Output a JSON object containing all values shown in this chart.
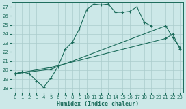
{
  "xlabel": "Humidex (Indice chaleur)",
  "xlim": [
    -0.5,
    23.5
  ],
  "ylim": [
    17.5,
    27.5
  ],
  "xticks": [
    0,
    1,
    2,
    3,
    4,
    5,
    6,
    7,
    8,
    9,
    10,
    11,
    12,
    13,
    14,
    15,
    16,
    17,
    18,
    19,
    20,
    21,
    22,
    23
  ],
  "yticks": [
    18,
    19,
    20,
    21,
    22,
    23,
    24,
    25,
    26,
    27
  ],
  "line_color": "#1a6b5a",
  "bg_color": "#cce8e8",
  "grid_color": "#aacccc",
  "line1_x": [
    0,
    1,
    2,
    3,
    4,
    5,
    6,
    7,
    8,
    9,
    10,
    11,
    12,
    13,
    14,
    15,
    16,
    17,
    18,
    19
  ],
  "line1_y": [
    19.6,
    19.8,
    19.6,
    18.8,
    18.1,
    19.1,
    20.4,
    22.3,
    23.1,
    24.6,
    26.7,
    27.3,
    27.2,
    27.3,
    26.4,
    26.4,
    26.5,
    27.0,
    25.3,
    24.9
  ],
  "line2_x": [
    0,
    5,
    21,
    22,
    23
  ],
  "line2_y": [
    19.6,
    20.1,
    24.9,
    23.6,
    22.5
  ],
  "line3_x": [
    0,
    5,
    21,
    22,
    23
  ],
  "line3_y": [
    19.6,
    20.3,
    23.5,
    24.0,
    22.3
  ]
}
